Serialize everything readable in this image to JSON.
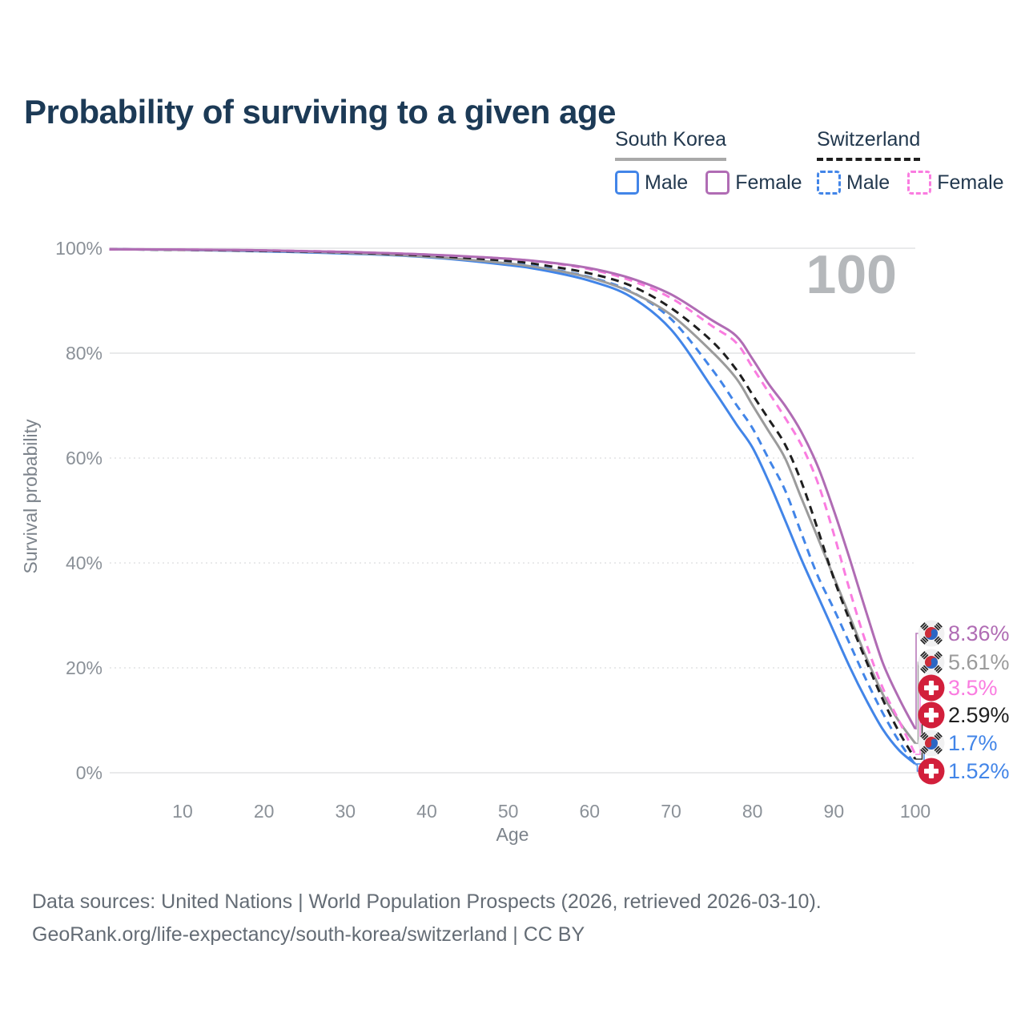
{
  "title": "Probability of surviving to a given age",
  "watermark": "100",
  "legend": {
    "groups": [
      {
        "country": "South Korea",
        "line_style": "solid",
        "items": [
          {
            "label": "Male",
            "color": "#4285e8"
          },
          {
            "label": "Female",
            "color": "#b06cb4"
          }
        ]
      },
      {
        "country": "Switzerland",
        "line_style": "dashed",
        "items": [
          {
            "label": "Male",
            "color": "#4285e8"
          },
          {
            "label": "Female",
            "color": "#fa7ce0"
          }
        ]
      }
    ]
  },
  "footer_lines": [
    "Data sources: United Nations | World Population Prospects (2026, retrieved 2026-03-10).",
    "GeoRank.org/life-expectancy/south-korea/switzerland | CC BY"
  ],
  "chart_data": {
    "type": "line",
    "title": "Probability of surviving to a given age",
    "xlabel": "Age",
    "ylabel": "Survival probability",
    "xlim": [
      1,
      100
    ],
    "ylim": [
      0,
      100
    ],
    "x_ticks": [
      10,
      20,
      30,
      40,
      50,
      60,
      70,
      80,
      90,
      100
    ],
    "y_ticks": [
      0,
      20,
      40,
      60,
      80,
      100
    ],
    "y_tick_suffix": "%",
    "grid": "horizontal",
    "legend_position": "top-right",
    "hover_x_value": "100",
    "ages": [
      1,
      10,
      20,
      30,
      40,
      50,
      55,
      60,
      65,
      70,
      75,
      78,
      80,
      82,
      84,
      86,
      88,
      90,
      92,
      94,
      96,
      98,
      100
    ],
    "series": [
      {
        "name": "South Korea Female",
        "flag": "south-korea",
        "dash": "solid",
        "color": "#b06cb4",
        "end_label": "8.36%",
        "values": [
          99.8,
          99.75,
          99.6,
          99.3,
          98.8,
          98.0,
          97.3,
          96.2,
          94.3,
          91.2,
          86.3,
          83.3,
          78.9,
          74.1,
          70.0,
          65.0,
          58.5,
          50.0,
          40.5,
          30.5,
          21.0,
          14.2,
          8.36
        ]
      },
      {
        "name": "South Korea Both Sexes",
        "flag": "south-korea",
        "dash": "solid",
        "color": "#9b9b9b",
        "end_label": "5.61%",
        "values": [
          99.8,
          99.7,
          99.5,
          99.1,
          98.4,
          97.1,
          96.0,
          94.4,
          91.7,
          87.3,
          80.3,
          75.2,
          70.1,
          65.1,
          60.0,
          52.4,
          44.9,
          37.3,
          29.6,
          21.9,
          15.0,
          9.8,
          5.61
        ]
      },
      {
        "name": "Switzerland Female",
        "flag": "switzerland",
        "dash": "dashed",
        "color": "#fa7ce0",
        "end_label": "3.5%",
        "values": [
          99.8,
          99.75,
          99.6,
          99.3,
          98.8,
          98.0,
          97.2,
          96.0,
          93.9,
          90.5,
          85.2,
          82.0,
          77.3,
          72.5,
          67.7,
          62.5,
          55.4,
          45.5,
          34.5,
          24.5,
          16.2,
          9.9,
          3.5
        ]
      },
      {
        "name": "Switzerland Both Sexes",
        "flag": "switzerland",
        "dash": "dashed",
        "color": "#1f1f1f",
        "end_label": "2.59%",
        "values": [
          99.8,
          99.7,
          99.5,
          99.2,
          98.6,
          97.6,
          96.6,
          95.2,
          92.9,
          88.6,
          82.3,
          76.9,
          72.1,
          67.4,
          62.6,
          55.5,
          46.5,
          37.0,
          28.8,
          21.2,
          14.0,
          7.8,
          2.59
        ]
      },
      {
        "name": "South Korea Male",
        "flag": "south-korea",
        "dash": "solid",
        "color": "#4285e8",
        "end_label": "1.7%",
        "values": [
          99.8,
          99.7,
          99.4,
          99.0,
          98.3,
          96.8,
          95.6,
          93.8,
          90.8,
          84.5,
          73.5,
          66.5,
          62.0,
          55.5,
          48.2,
          40.7,
          33.8,
          26.9,
          20.0,
          13.8,
          8.3,
          4.3,
          1.7
        ]
      },
      {
        "name": "Switzerland Male",
        "flag": "switzerland",
        "dash": "dashed",
        "color": "#4285e8",
        "end_label": "1.52%",
        "values": [
          99.8,
          99.7,
          99.5,
          99.1,
          98.5,
          97.2,
          96.1,
          94.5,
          91.8,
          86.5,
          77.0,
          70.2,
          65.7,
          59.8,
          53.9,
          45.7,
          37.6,
          31.2,
          24.4,
          17.6,
          11.4,
          6.0,
          1.52
        ]
      }
    ]
  }
}
